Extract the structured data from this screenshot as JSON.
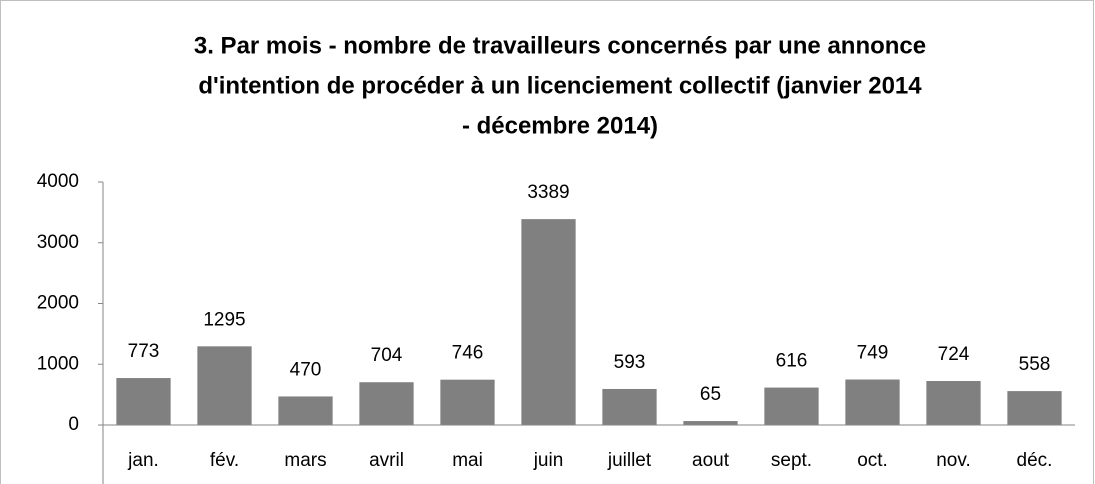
{
  "chart_data": {
    "type": "bar",
    "title": [
      "3. Par mois - nombre de travailleurs concernés par une annonce",
      "d'intention de procéder à un licenciement collectif (janvier 2014",
      "- décembre 2014)"
    ],
    "categories": [
      "jan.",
      "fév.",
      "mars",
      "avril",
      "mai",
      "juin",
      "juillet",
      "aout",
      "sept.",
      "oct.",
      "nov.",
      "déc."
    ],
    "values": [
      773,
      1295,
      470,
      704,
      746,
      3389,
      593,
      65,
      616,
      749,
      724,
      558
    ],
    "color": "#808080",
    "ylim": [
      0,
      4000
    ],
    "yticks": [
      0,
      1000,
      2000,
      3000,
      4000
    ],
    "grid": false
  }
}
